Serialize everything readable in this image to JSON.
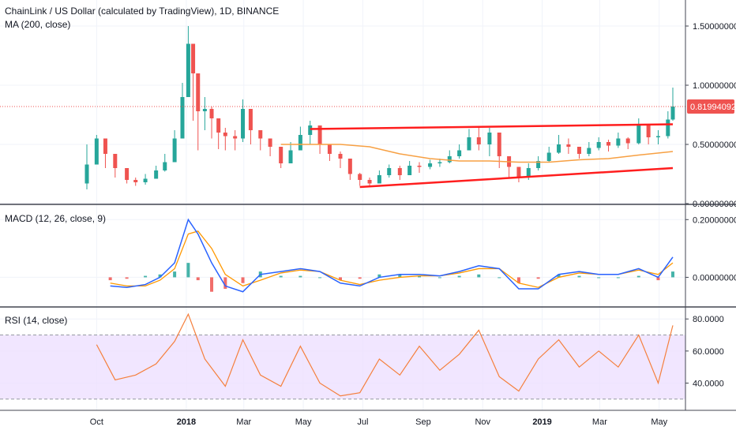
{
  "chart": {
    "title": "ChainLink / US Dollar (calculated by TradingView), 1D, BINANCE",
    "ma_label": "MA (200, close)",
    "macd_label": "MACD (12, 26, close, 9)",
    "rsi_label": "RSI (14, close)",
    "last_price_label": "0.81994092"
  },
  "colors": {
    "up": "#26a69a",
    "down": "#ef5350",
    "ma": "#f7a043",
    "trendline": "#ff1e1e",
    "macd": "#2962ff",
    "signal": "#ff9800",
    "rsi": "#f57f3c",
    "rsi_band": "#ede0ff",
    "price_tag": "#ef5350",
    "grid": "#f0f3fa",
    "separator": "#434651"
  },
  "chart_data": [
    {
      "type": "candlestick",
      "name": "price",
      "x": [
        "2017-09-21",
        "2017-10-01",
        "2017-10-10",
        "2017-10-20",
        "2017-11-01",
        "2017-11-10",
        "2017-11-20",
        "2017-12-01",
        "2017-12-10",
        "2017-12-20",
        "2017-12-28",
        "2018-01-03",
        "2018-01-08",
        "2018-01-13",
        "2018-01-20",
        "2018-01-27",
        "2018-02-03",
        "2018-02-10",
        "2018-02-20",
        "2018-02-28",
        "2018-03-08",
        "2018-03-18",
        "2018-03-28",
        "2018-04-08",
        "2018-04-18",
        "2018-04-28",
        "2018-05-08",
        "2018-05-18",
        "2018-05-28",
        "2018-06-08",
        "2018-06-18",
        "2018-06-28",
        "2018-07-08",
        "2018-07-18",
        "2018-07-28",
        "2018-08-08",
        "2018-08-18",
        "2018-08-28",
        "2018-09-08",
        "2018-09-18",
        "2018-09-28",
        "2018-10-08",
        "2018-10-18",
        "2018-10-28",
        "2018-11-08",
        "2018-11-18",
        "2018-11-28",
        "2018-12-08",
        "2018-12-18",
        "2018-12-28",
        "2019-01-08",
        "2019-01-18",
        "2019-01-28",
        "2019-02-08",
        "2019-02-18",
        "2019-02-28",
        "2019-03-10",
        "2019-03-20",
        "2019-03-30",
        "2019-04-10",
        "2019-04-20",
        "2019-04-30",
        "2019-05-10",
        "2019-05-15"
      ],
      "close": [
        0.33,
        0.55,
        0.42,
        0.3,
        0.2,
        0.18,
        0.21,
        0.28,
        0.35,
        0.55,
        0.9,
        1.35,
        1.1,
        0.78,
        0.8,
        0.72,
        0.6,
        0.57,
        0.55,
        0.8,
        0.62,
        0.55,
        0.48,
        0.34,
        0.45,
        0.58,
        0.66,
        0.5,
        0.42,
        0.38,
        0.25,
        0.2,
        0.17,
        0.24,
        0.3,
        0.24,
        0.32,
        0.31,
        0.34,
        0.35,
        0.4,
        0.45,
        0.56,
        0.5,
        0.6,
        0.4,
        0.31,
        0.22,
        0.3,
        0.36,
        0.43,
        0.5,
        0.48,
        0.42,
        0.47,
        0.52,
        0.49,
        0.55,
        0.51,
        0.66,
        0.56,
        0.57,
        0.71,
        0.82
      ],
      "high": [
        0.5,
        0.58,
        0.48,
        0.36,
        0.26,
        0.22,
        0.25,
        0.32,
        0.42,
        0.62,
        1.02,
        1.5,
        1.35,
        1.0,
        0.9,
        0.82,
        0.7,
        0.64,
        0.62,
        0.88,
        0.8,
        0.62,
        0.55,
        0.45,
        0.52,
        0.65,
        0.7,
        0.62,
        0.5,
        0.44,
        0.34,
        0.26,
        0.22,
        0.28,
        0.33,
        0.32,
        0.36,
        0.35,
        0.37,
        0.38,
        0.45,
        0.5,
        0.63,
        0.65,
        0.64,
        0.5,
        0.38,
        0.29,
        0.34,
        0.4,
        0.48,
        0.58,
        0.55,
        0.48,
        0.52,
        0.56,
        0.54,
        0.6,
        0.56,
        0.72,
        0.64,
        0.62,
        0.78,
        0.98
      ],
      "low": [
        0.12,
        0.45,
        0.3,
        0.22,
        0.17,
        0.15,
        0.16,
        0.22,
        0.27,
        0.4,
        0.68,
        1.0,
        0.7,
        0.45,
        0.62,
        0.55,
        0.46,
        0.45,
        0.45,
        0.52,
        0.5,
        0.45,
        0.4,
        0.3,
        0.38,
        0.45,
        0.5,
        0.42,
        0.36,
        0.3,
        0.2,
        0.15,
        0.15,
        0.17,
        0.22,
        0.2,
        0.24,
        0.26,
        0.29,
        0.31,
        0.34,
        0.38,
        0.45,
        0.45,
        0.4,
        0.3,
        0.22,
        0.18,
        0.2,
        0.28,
        0.35,
        0.42,
        0.42,
        0.38,
        0.4,
        0.45,
        0.44,
        0.47,
        0.46,
        0.5,
        0.5,
        0.5,
        0.55,
        0.7
      ],
      "ylim": [
        0,
        1.6
      ],
      "y_ticks": [
        0,
        0.5,
        1.0,
        1.5
      ],
      "y_tick_labels": [
        "0.00000000",
        "0.50000000",
        "1.00000000",
        "1.50000000"
      ]
    },
    {
      "type": "line",
      "name": "MA (200, close)",
      "x": [
        "2018-04-08",
        "2018-05-08",
        "2018-06-08",
        "2018-07-08",
        "2018-08-08",
        "2018-09-08",
        "2018-10-08",
        "2018-11-08",
        "2018-12-08",
        "2019-01-08",
        "2019-02-08",
        "2019-03-10",
        "2019-04-10",
        "2019-05-15"
      ],
      "y": [
        0.5,
        0.5,
        0.5,
        0.48,
        0.42,
        0.38,
        0.36,
        0.36,
        0.35,
        0.35,
        0.37,
        0.38,
        0.41,
        0.44
      ]
    },
    {
      "type": "line",
      "name": "trendlines",
      "segments": [
        {
          "x": [
            "2018-05-08",
            "2019-05-15"
          ],
          "y": [
            0.63,
            0.67
          ]
        },
        {
          "x": [
            "2018-06-28",
            "2019-05-15"
          ],
          "y": [
            0.14,
            0.3
          ]
        }
      ]
    },
    {
      "type": "bar",
      "name": "MACD (12, 26, close, 9)",
      "x": [
        "2017-10-15",
        "2017-11-01",
        "2017-11-20",
        "2017-12-05",
        "2017-12-20",
        "2018-01-03",
        "2018-01-13",
        "2018-01-27",
        "2018-02-10",
        "2018-02-28",
        "2018-03-18",
        "2018-04-08",
        "2018-04-28",
        "2018-05-18",
        "2018-06-08",
        "2018-06-28",
        "2018-07-18",
        "2018-08-08",
        "2018-08-28",
        "2018-09-18",
        "2018-10-08",
        "2018-10-28",
        "2018-11-18",
        "2018-12-08",
        "2018-12-28",
        "2019-01-18",
        "2019-02-08",
        "2019-02-28",
        "2019-03-20",
        "2019-04-10",
        "2019-04-30",
        "2019-05-15"
      ],
      "macd": [
        -0.03,
        -0.035,
        -0.025,
        0.0,
        0.05,
        0.2,
        0.15,
        0.05,
        -0.03,
        -0.05,
        0.01,
        0.02,
        0.03,
        0.02,
        -0.02,
        -0.03,
        0.0,
        0.01,
        0.01,
        0.005,
        0.02,
        0.04,
        0.03,
        -0.04,
        -0.04,
        0.01,
        0.02,
        0.01,
        0.01,
        0.03,
        0.0,
        0.07
      ],
      "signal": [
        -0.02,
        -0.03,
        -0.03,
        -0.01,
        0.03,
        0.15,
        0.16,
        0.1,
        0.01,
        -0.03,
        -0.01,
        0.015,
        0.025,
        0.02,
        -0.01,
        -0.025,
        -0.01,
        0.0,
        0.005,
        0.005,
        0.015,
        0.03,
        0.03,
        -0.02,
        -0.035,
        0.0,
        0.015,
        0.01,
        0.01,
        0.025,
        0.01,
        0.05
      ],
      "histogram": [
        -0.01,
        -0.005,
        0.005,
        0.01,
        0.02,
        0.05,
        -0.01,
        -0.05,
        -0.04,
        -0.02,
        0.02,
        0.005,
        0.005,
        0.0,
        -0.01,
        -0.005,
        0.01,
        0.01,
        0.005,
        0.0,
        0.005,
        0.01,
        0.0,
        -0.02,
        -0.005,
        0.01,
        0.005,
        0.0,
        0.0,
        0.005,
        -0.01,
        0.02
      ],
      "ylim": [
        -0.1,
        0.25
      ],
      "y_ticks": [
        0,
        0.2
      ],
      "y_tick_labels": [
        "0.00000000",
        "0.20000000"
      ]
    },
    {
      "type": "line",
      "name": "RSI (14, close)",
      "x": [
        "2017-10-01",
        "2017-10-20",
        "2017-11-10",
        "2017-12-01",
        "2017-12-20",
        "2018-01-03",
        "2018-01-20",
        "2018-02-10",
        "2018-02-28",
        "2018-03-18",
        "2018-04-08",
        "2018-04-28",
        "2018-05-18",
        "2018-06-08",
        "2018-06-28",
        "2018-07-18",
        "2018-08-08",
        "2018-08-28",
        "2018-09-18",
        "2018-10-08",
        "2018-10-28",
        "2018-11-18",
        "2018-12-08",
        "2018-12-28",
        "2019-01-18",
        "2019-02-08",
        "2019-02-28",
        "2019-03-20",
        "2019-04-10",
        "2019-04-30",
        "2019-05-15"
      ],
      "y": [
        64,
        42,
        45,
        52,
        66,
        83,
        55,
        38,
        67,
        45,
        38,
        63,
        40,
        32,
        34,
        55,
        45,
        63,
        48,
        58,
        73,
        44,
        35,
        55,
        67,
        50,
        60,
        50,
        70,
        40,
        76
      ],
      "ylim": [
        23,
        87
      ],
      "band": [
        30,
        70
      ],
      "y_ticks": [
        40,
        60,
        80
      ],
      "y_tick_labels": [
        "40.0000",
        "60.0000",
        "80.0000"
      ]
    }
  ],
  "x_axis": {
    "ticks": [
      {
        "date": "2017-10-01",
        "label": "Oct",
        "bold": false
      },
      {
        "date": "2018-01-01",
        "label": "2018",
        "bold": true
      },
      {
        "date": "2018-03-01",
        "label": "Mar",
        "bold": false
      },
      {
        "date": "2018-05-01",
        "label": "May",
        "bold": false
      },
      {
        "date": "2018-07-01",
        "label": "Jul",
        "bold": false
      },
      {
        "date": "2018-09-01",
        "label": "Sep",
        "bold": false
      },
      {
        "date": "2018-11-01",
        "label": "Nov",
        "bold": false
      },
      {
        "date": "2019-01-01",
        "label": "2019",
        "bold": true
      },
      {
        "date": "2019-03-01",
        "label": "Mar",
        "bold": false
      },
      {
        "date": "2019-05-01",
        "label": "May",
        "bold": false
      }
    ]
  }
}
